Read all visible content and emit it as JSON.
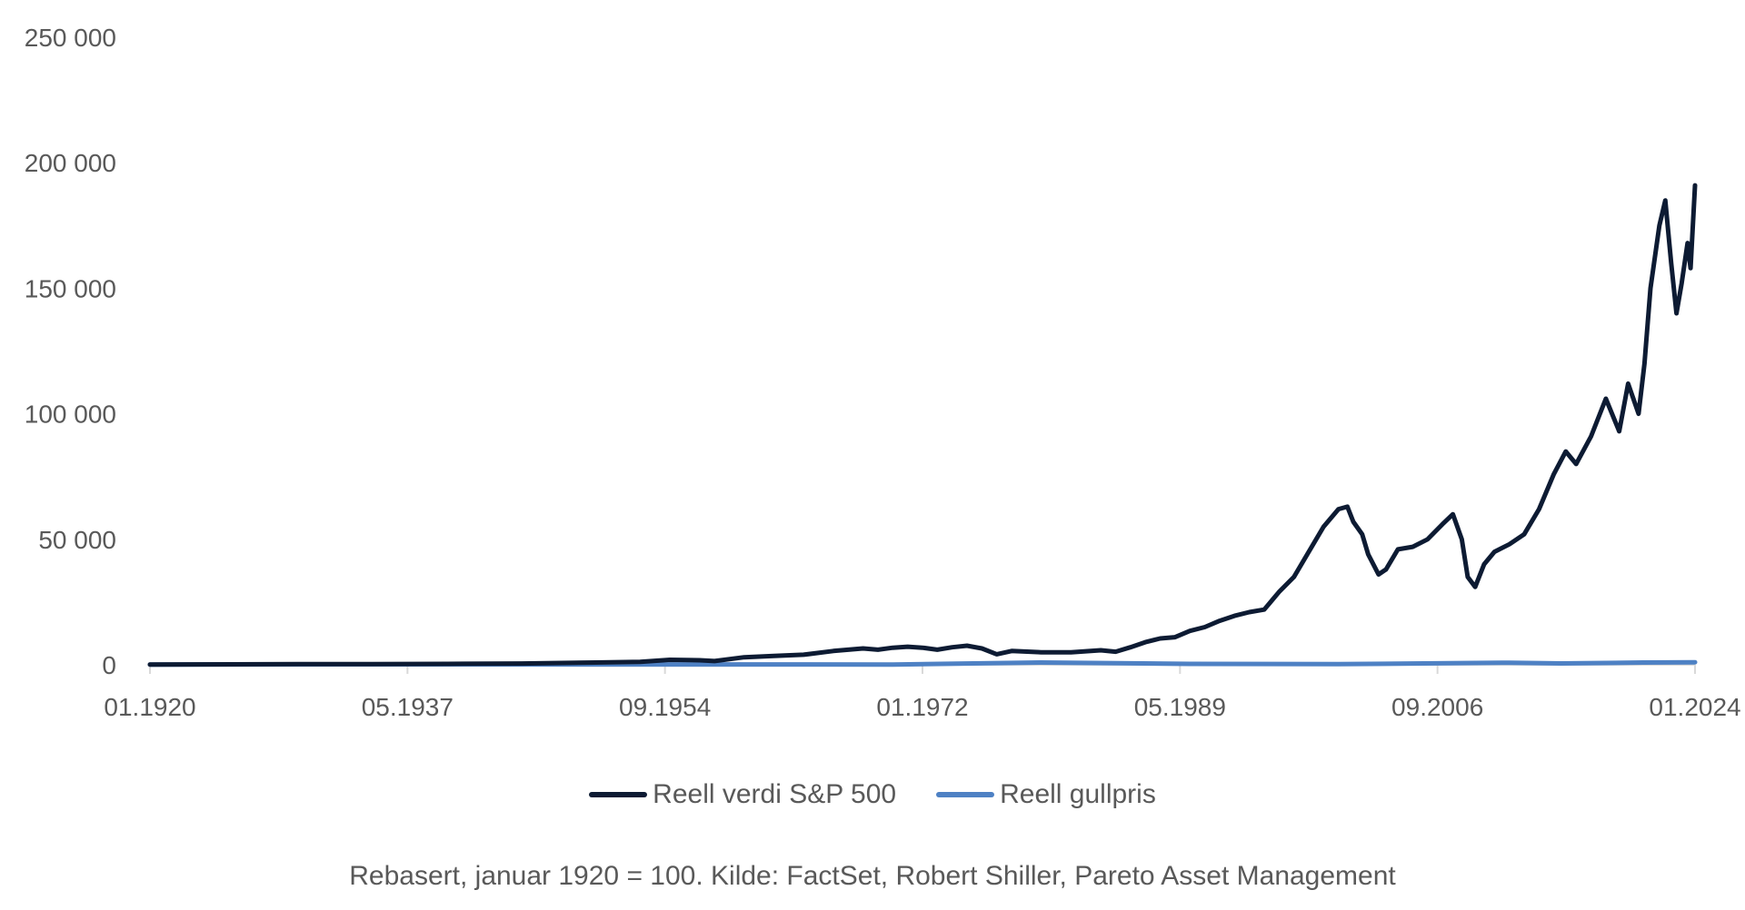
{
  "chart_data": {
    "type": "line",
    "ylim": [
      0,
      250000
    ],
    "y_ticks": [
      0,
      50000,
      100000,
      150000,
      200000,
      250000
    ],
    "y_tick_labels": [
      "0",
      "50 000",
      "100 000",
      "150 000",
      "200 000",
      "250 000"
    ],
    "x_range": [
      "01.1920",
      "01.2024"
    ],
    "x_tick_labels": [
      "01.1920",
      "05.1937",
      "09.1954",
      "01.1972",
      "05.1989",
      "09.2006",
      "01.2024"
    ],
    "grid": false,
    "legend_position": "bottom",
    "series": [
      {
        "name": "Reell verdi S&P 500",
        "color": "#0d1b33",
        "points": [
          [
            "1920.0",
            100
          ],
          [
            "1930.0",
            250
          ],
          [
            "1935.0",
            300
          ],
          [
            "1940.0",
            350
          ],
          [
            "1945.0",
            500
          ],
          [
            "1950.0",
            900
          ],
          [
            "1953.0",
            1200
          ],
          [
            "1955.0",
            2000
          ],
          [
            "1957.0",
            1800
          ],
          [
            "1958.0",
            1500
          ],
          [
            "1960.0",
            3000
          ],
          [
            "1962.0",
            3500
          ],
          [
            "1964.0",
            4000
          ],
          [
            "1966.0",
            5500
          ],
          [
            "1968.0",
            6500
          ],
          [
            "1969.0",
            6000
          ],
          [
            "1970.0",
            6800
          ],
          [
            "1971.0",
            7200
          ],
          [
            "1972.0",
            6800
          ],
          [
            "1973.0",
            6000
          ],
          [
            "1974.0",
            7000
          ],
          [
            "1975.0",
            7600
          ],
          [
            "1976.0",
            6500
          ],
          [
            "1977.0",
            4200
          ],
          [
            "1978.0",
            5500
          ],
          [
            "1980.0",
            5000
          ],
          [
            "1982.0",
            5000
          ],
          [
            "1984.0",
            5800
          ],
          [
            "1985.0",
            5200
          ],
          [
            "1986.0",
            7000
          ],
          [
            "1987.0",
            9000
          ],
          [
            "1988.0",
            10500
          ],
          [
            "1989.0",
            11000
          ],
          [
            "1990.0",
            13500
          ],
          [
            "1991.0",
            15000
          ],
          [
            "1992.0",
            17500
          ],
          [
            "1993.0",
            19500
          ],
          [
            "1994.0",
            21000
          ],
          [
            "1995.0",
            22000
          ],
          [
            "1996.0",
            29000
          ],
          [
            "1997.0",
            35000
          ],
          [
            "1998.0",
            45000
          ],
          [
            "1999.0",
            55000
          ],
          [
            "2000.0",
            62000
          ],
          [
            "2000.6",
            63000
          ],
          [
            "2001.0",
            57000
          ],
          [
            "2001.6",
            52000
          ],
          [
            "2002.0",
            44000
          ],
          [
            "2002.7",
            36000
          ],
          [
            "2003.2",
            38000
          ],
          [
            "2004.0",
            46000
          ],
          [
            "2005.0",
            47000
          ],
          [
            "2006.0",
            50000
          ],
          [
            "2007.0",
            56000
          ],
          [
            "2007.7",
            60000
          ],
          [
            "2008.3",
            50000
          ],
          [
            "2008.7",
            35000
          ],
          [
            "2009.2",
            31000
          ],
          [
            "2009.8",
            40000
          ],
          [
            "2010.5",
            45000
          ],
          [
            "2011.5",
            48000
          ],
          [
            "2012.5",
            52000
          ],
          [
            "2013.5",
            62000
          ],
          [
            "2014.5",
            76000
          ],
          [
            "2015.3",
            85000
          ],
          [
            "2016.0",
            80000
          ],
          [
            "2017.0",
            91000
          ],
          [
            "2018.0",
            106000
          ],
          [
            "2018.9",
            93000
          ],
          [
            "2019.5",
            112000
          ],
          [
            "2020.2",
            100000
          ],
          [
            "2020.6",
            120000
          ],
          [
            "2021.0",
            150000
          ],
          [
            "2021.6",
            175000
          ],
          [
            "2022.0",
            185000
          ],
          [
            "2022.4",
            160000
          ],
          [
            "2022.75",
            140000
          ],
          [
            "2023.1",
            152000
          ],
          [
            "2023.5",
            168000
          ],
          [
            "2023.7",
            158000
          ],
          [
            "2024.0",
            191000
          ]
        ]
      },
      {
        "name": "Reell gullpris",
        "color": "#4e81c4",
        "points": [
          [
            "1920.0",
            100
          ],
          [
            "1934.0",
            180
          ],
          [
            "1950.0",
            130
          ],
          [
            "1970.0",
            110
          ],
          [
            "1980.0",
            900
          ],
          [
            "1990.0",
            350
          ],
          [
            "2000.0",
            250
          ],
          [
            "2011.5",
            850
          ],
          [
            "2015.0",
            550
          ],
          [
            "2020.5",
            900
          ],
          [
            "2024.0",
            1000
          ]
        ]
      }
    ]
  },
  "legend": {
    "items": [
      {
        "label": "Reell verdi S&P 500",
        "color": "#0d1b33"
      },
      {
        "label": "Reell gullpris",
        "color": "#4e81c4"
      }
    ]
  },
  "footnote": "Rebasert, januar 1920 = 100. Kilde: FactSet, Robert Shiller, Pareto Asset Management"
}
